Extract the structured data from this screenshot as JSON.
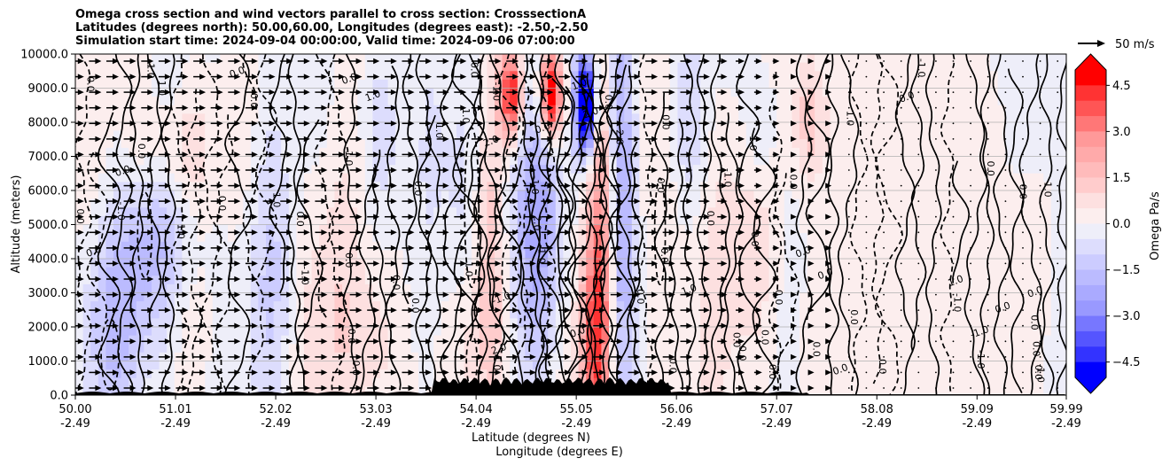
{
  "chart_data": {
    "type": "heatmap",
    "title_lines": [
      "Omega cross section and wind vectors parallel to cross section: CrosssectionA",
      "Latitudes (degrees north): 50.00,60.00, Longitudes (degrees east): -2.50,-2.50",
      "Simulation start time: 2024-09-04 00:00:00, Valid time: 2024-09-06 07:00:00"
    ],
    "ylabel": "Altitude (meters)",
    "xlabel_lines": [
      "Latitude (degrees N)",
      "Longitude (degrees E)"
    ],
    "x_ticks_lat": [
      "50.00",
      "51.01",
      "52.02",
      "53.03",
      "54.04",
      "55.05",
      "56.06",
      "57.07",
      "58.08",
      "59.09",
      "59.99"
    ],
    "x_ticks_lon": [
      "-2.49",
      "-2.49",
      "-2.49",
      "-2.49",
      "-2.49",
      "-2.49",
      "-2.49",
      "-2.49",
      "-2.49",
      "-2.49",
      "-2.49"
    ],
    "x_range": [
      50.0,
      59.99
    ],
    "y_ticks": [
      "0.0",
      "1000.0",
      "2000.0",
      "3000.0",
      "4000.0",
      "5000.0",
      "6000.0",
      "7000.0",
      "8000.0",
      "9000.0",
      "10000.0"
    ],
    "y_range": [
      0,
      10000
    ],
    "grid": "horizontal",
    "colorbar": {
      "label": "Omega Pa/s",
      "ticks": [
        "4.5",
        "3.0",
        "1.5",
        "0.0",
        "−1.5",
        "−3.0",
        "−4.5"
      ],
      "range": [
        -5,
        5
      ],
      "extend": "both",
      "colors": [
        "#0000ff",
        "#3333ff",
        "#5555ff",
        "#7777ff",
        "#9999ff",
        "#aaaaff",
        "#bbbbff",
        "#ccccff",
        "#ddddfd",
        "#eeeef9",
        "#fceeee",
        "#fde0e0",
        "#ffcccc",
        "#ffbbbb",
        "#ffaaaa",
        "#ff9999",
        "#ff7777",
        "#ff5555",
        "#ff3333",
        "#ff0000"
      ]
    },
    "quiver_key": {
      "label": "50 m/s"
    },
    "contour_labels": [
      "0.0",
      "1.0",
      "-1.0",
      "2.0",
      "-2.0"
    ]
  }
}
